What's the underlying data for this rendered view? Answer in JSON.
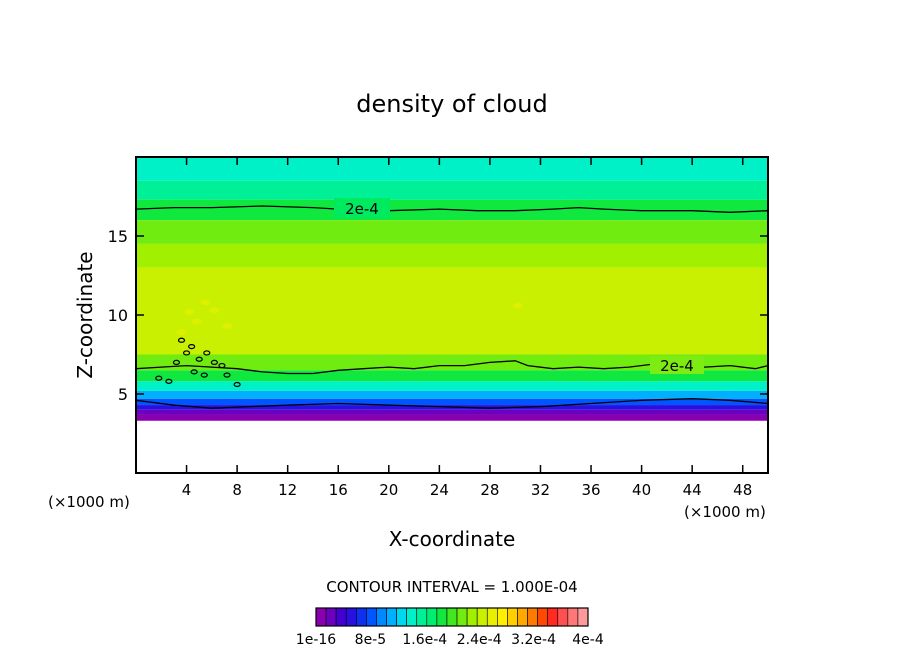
{
  "chart_data": {
    "type": "heatmap",
    "title": "density of cloud",
    "xlabel": "X-coordinate",
    "ylabel": "Z-coordinate",
    "x_unit_label": "(×1000 m)",
    "y_unit_label": "(×1000 m)",
    "xlim": [
      0,
      50
    ],
    "ylim": [
      0,
      20
    ],
    "x_ticks": [
      4,
      8,
      12,
      16,
      20,
      24,
      28,
      32,
      36,
      40,
      44,
      48
    ],
    "y_ticks": [
      5,
      10,
      15
    ],
    "contour_interval_text": "CONTOUR INTERVAL = 1.000E-04",
    "contour_label": "2e-4",
    "contours": [
      {
        "level": "2e-4",
        "points": [
          [
            0,
            16.7
          ],
          [
            3,
            16.8
          ],
          [
            6,
            16.8
          ],
          [
            10,
            16.9
          ],
          [
            14,
            16.8
          ],
          [
            16,
            16.7
          ],
          [
            20,
            16.6
          ],
          [
            24,
            16.7
          ],
          [
            27,
            16.6
          ],
          [
            30,
            16.6
          ],
          [
            33,
            16.7
          ],
          [
            35,
            16.8
          ],
          [
            37,
            16.7
          ],
          [
            40,
            16.6
          ],
          [
            44,
            16.6
          ],
          [
            47,
            16.5
          ],
          [
            50,
            16.6
          ]
        ]
      },
      {
        "level": "2e-4",
        "points": [
          [
            0,
            6.6
          ],
          [
            2,
            6.7
          ],
          [
            4,
            6.8
          ],
          [
            6,
            6.7
          ],
          [
            8,
            6.6
          ],
          [
            10,
            6.4
          ],
          [
            12,
            6.3
          ],
          [
            14,
            6.3
          ],
          [
            16,
            6.5
          ],
          [
            18,
            6.6
          ],
          [
            20,
            6.7
          ],
          [
            22,
            6.6
          ],
          [
            24,
            6.8
          ],
          [
            26,
            6.8
          ],
          [
            28,
            7.0
          ],
          [
            30,
            7.1
          ],
          [
            31,
            6.8
          ],
          [
            33,
            6.6
          ],
          [
            35,
            6.7
          ],
          [
            37,
            6.6
          ],
          [
            39,
            6.7
          ],
          [
            41,
            6.9
          ],
          [
            43,
            6.9
          ],
          [
            45,
            6.7
          ],
          [
            47,
            6.8
          ],
          [
            49,
            6.6
          ],
          [
            50,
            6.8
          ]
        ]
      },
      {
        "level": "2e-4",
        "points": [
          [
            0,
            4.6
          ],
          [
            3,
            4.3
          ],
          [
            6,
            4.1
          ],
          [
            9,
            4.2
          ],
          [
            12,
            4.3
          ],
          [
            16,
            4.4
          ],
          [
            20,
            4.3
          ],
          [
            24,
            4.2
          ],
          [
            28,
            4.1
          ],
          [
            32,
            4.2
          ],
          [
            36,
            4.4
          ],
          [
            40,
            4.6
          ],
          [
            44,
            4.7
          ],
          [
            47,
            4.6
          ],
          [
            50,
            4.4
          ]
        ]
      }
    ],
    "bands": [
      {
        "z": [
          18.5,
          20
        ],
        "value": 0.00014
      },
      {
        "z": [
          17.3,
          18.5
        ],
        "value": 0.00016
      },
      {
        "z": [
          16.0,
          17.3
        ],
        "value": 0.00019
      },
      {
        "z": [
          14.5,
          16.0
        ],
        "value": 0.00021
      },
      {
        "z": [
          13.0,
          14.5
        ],
        "value": 0.00023
      },
      {
        "z": [
          7.5,
          13.0
        ],
        "value": 0.00025
      },
      {
        "z": [
          6.5,
          7.5
        ],
        "value": 0.00022
      },
      {
        "z": [
          5.8,
          6.5
        ],
        "value": 0.00018
      },
      {
        "z": [
          5.2,
          5.8
        ],
        "value": 0.00014
      },
      {
        "z": [
          4.7,
          5.2
        ],
        "value": 0.00011
      },
      {
        "z": [
          4.3,
          4.7
        ],
        "value": 8e-05
      },
      {
        "z": [
          4.0,
          4.3
        ],
        "value": 5e-05
      },
      {
        "z": [
          3.7,
          4.0
        ],
        "value": 2e-05
      },
      {
        "z": [
          3.3,
          3.7
        ],
        "value": 1e-16
      }
    ],
    "cloud_base_km": 3.3,
    "colorbar": {
      "tick_labels": [
        "1e-16",
        "8e-5",
        "1.6e-4",
        "2.4e-4",
        "3.2e-4",
        "4e-4"
      ],
      "colors": [
        "#8a00b0",
        "#6a00c0",
        "#4400d0",
        "#2a10e0",
        "#1030f0",
        "#0055ff",
        "#0088ff",
        "#00b0ff",
        "#00d8f0",
        "#00f0c8",
        "#00f098",
        "#00ee70",
        "#10e840",
        "#40e820",
        "#70ec10",
        "#a0f000",
        "#c8f000",
        "#e8f000",
        "#fff000",
        "#ffd000",
        "#ffa800",
        "#ff7a00",
        "#ff4800",
        "#ff2a20",
        "#ff5050",
        "#ff7878",
        "#ff9a9a"
      ]
    },
    "colors": {
      "frame": "#000000",
      "contour": "#000000",
      "below_cloud": "#ffffff"
    }
  }
}
